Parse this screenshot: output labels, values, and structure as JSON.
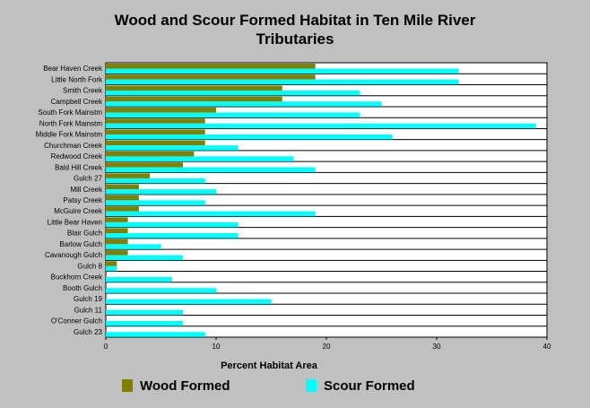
{
  "title_lines": [
    "Wood and Scour Formed Habitat in Ten Mile River",
    "Tributaries"
  ],
  "colors": {
    "wood": "#808000",
    "scour": "#00ffff",
    "background": "#c0c0c0",
    "plot": "#ffffff"
  },
  "chart_data": {
    "type": "bar",
    "orientation": "horizontal",
    "title": "Wood and Scour Formed Habitat in Ten Mile River Tributaries",
    "xlabel": "Percent Habitat Area",
    "ylabel": "",
    "xlim": [
      0,
      40
    ],
    "xticks": [
      0,
      10,
      20,
      30,
      40
    ],
    "grid": "horizontal lines between categories",
    "legend_position": "bottom",
    "categories": [
      "Bear Haven Creek",
      "Little North Fork",
      "Smith Creek",
      "Campbell Creek",
      "South Fork Mainstm",
      "North Fork Mainstm",
      "Middle Fork Mainstm",
      "Churchman Creek",
      "Redwood Creek",
      "Bald Hill Creek",
      "Gulch 27",
      "Mill Creek",
      "Patsy Creek",
      "McGuire Creek",
      "Little Bear Haven",
      "Blair Gulch",
      "Barlow Gulch",
      "Cavanough Gulch",
      "Gulch 8",
      "Buckhorn Creek",
      "Booth Gulch",
      "Gulch 19",
      "Gulch 11",
      "O'Conner Gulch",
      "Gulch 23"
    ],
    "series": [
      {
        "name": "Wood Formed",
        "values": [
          19,
          19,
          16,
          16,
          10,
          9,
          9,
          9,
          8,
          7,
          4,
          3,
          3,
          3,
          2,
          2,
          2,
          2,
          1,
          0,
          0,
          0,
          0,
          0,
          0
        ]
      },
      {
        "name": "Scour Formed",
        "values": [
          32,
          32,
          23,
          25,
          23,
          39,
          26,
          12,
          17,
          19,
          9,
          10,
          9,
          19,
          12,
          12,
          5,
          7,
          1,
          6,
          10,
          15,
          7,
          7,
          9
        ]
      }
    ]
  }
}
